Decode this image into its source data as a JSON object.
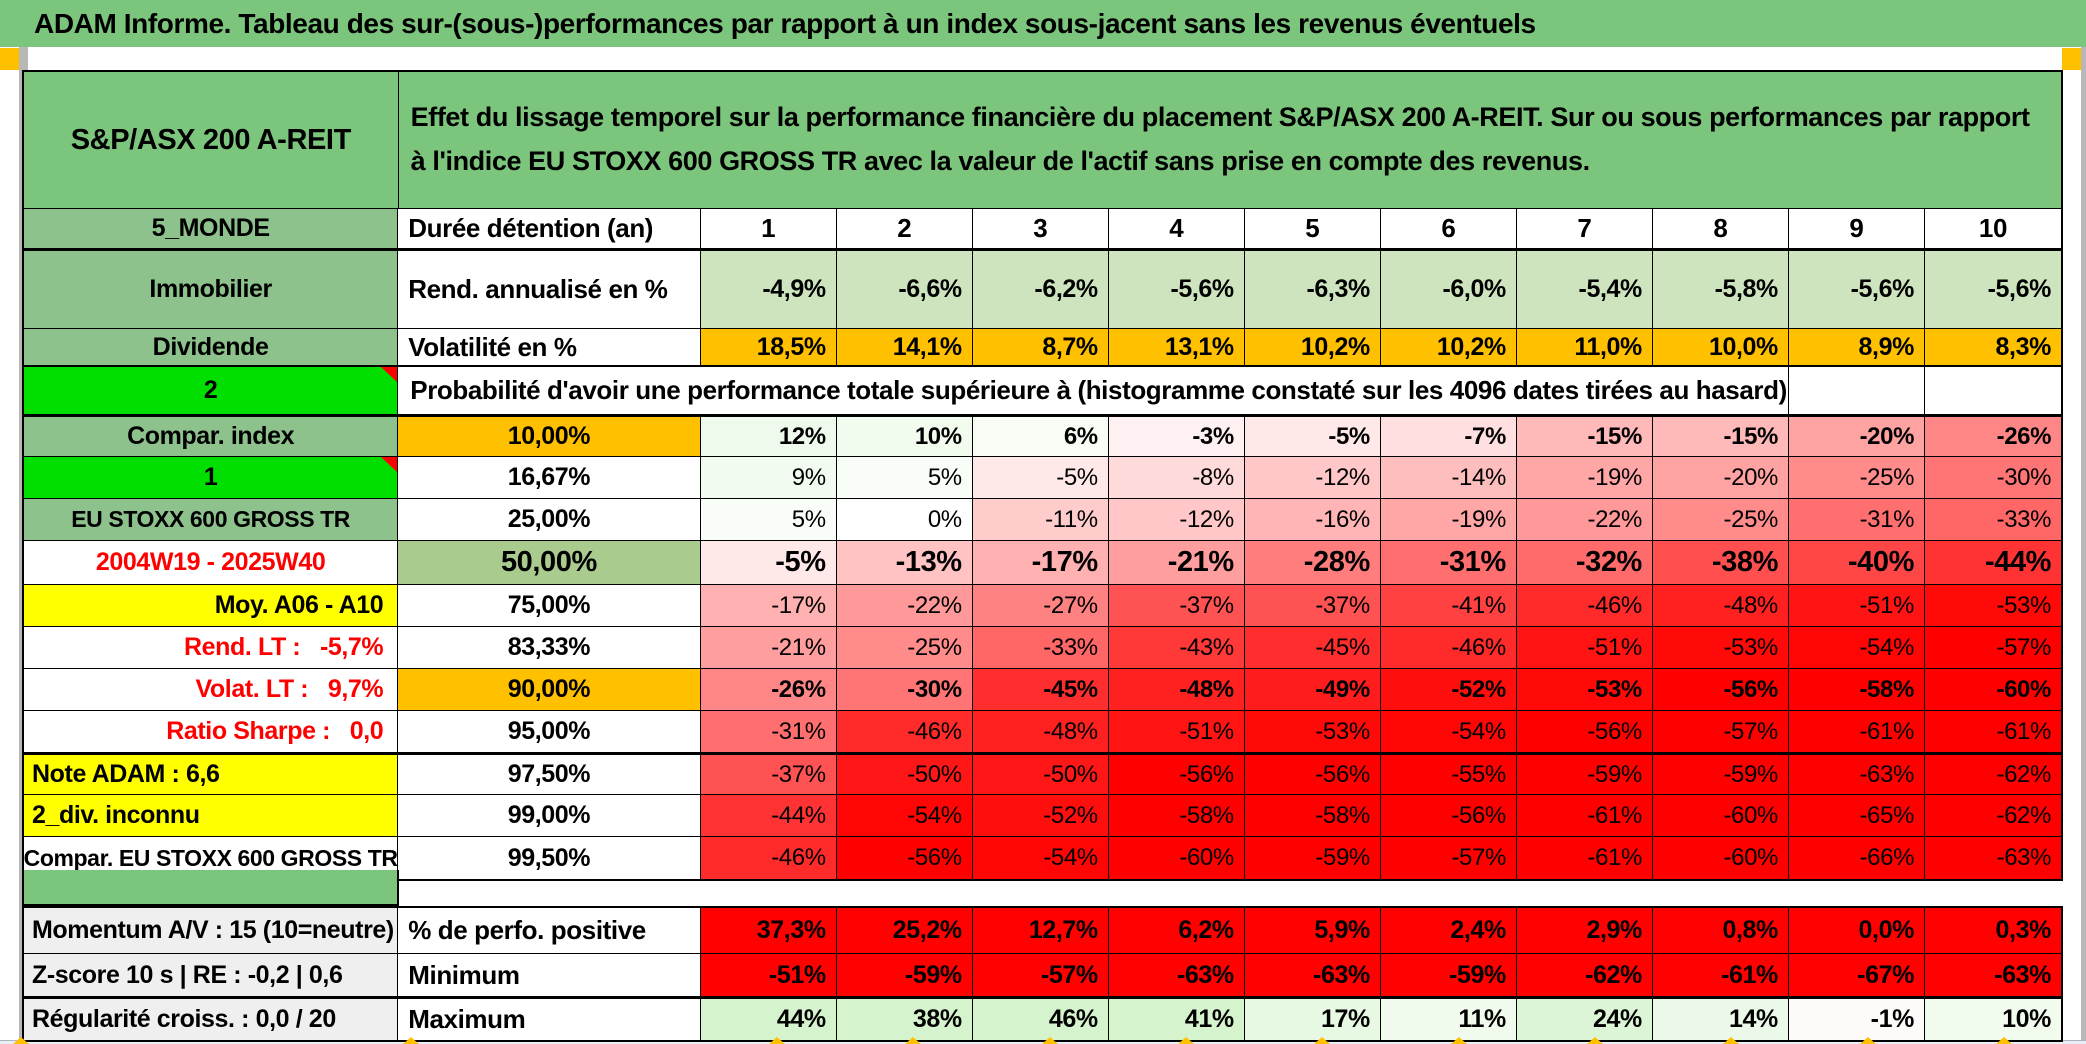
{
  "title": "ADAM Informe. Tableau des sur-(sous-)performances par rapport à un index sous-jacent sans les revenus éventuels",
  "table": {
    "asset_name": "S&P/ASX 200 A-REIT",
    "description": "Effet du lissage temporel sur la performance financière du placement S&P/ASX 200 A-REIT. Sur ou sous performances par rapport à l'indice EU STOXX 600 GROSS TR avec la valeur de l'actif sans prise en compte des revenus.",
    "meta_rows": [
      {
        "label": "5_MONDE",
        "metric": "Durée détention (an)",
        "values": [
          "1",
          "2",
          "3",
          "4",
          "5",
          "6",
          "7",
          "8",
          "9",
          "10"
        ]
      },
      {
        "label": "Immobilier",
        "metric": "Rend. annualisé en %",
        "values": [
          "-4,9%",
          "-6,6%",
          "-6,2%",
          "-5,6%",
          "-6,3%",
          "-6,0%",
          "-5,4%",
          "-5,8%",
          "-5,6%",
          "-5,6%"
        ]
      },
      {
        "label": "Dividende",
        "metric": "Volatilité en %",
        "values": [
          "18,5%",
          "14,1%",
          "8,7%",
          "13,1%",
          "10,2%",
          "10,2%",
          "11,0%",
          "10,0%",
          "8,9%",
          "8,3%"
        ]
      }
    ],
    "probability_header": {
      "label": "2",
      "text": "Probabilité d'avoir une performance totale supérieure à (histogramme constaté sur les 4096 dates tirées au hasard)"
    },
    "probability_rows": [
      {
        "label": "Compar. index",
        "label_style": "green",
        "prob": "10,00%",
        "prob_style": "orange",
        "bold": true,
        "thick": true,
        "values": [
          "12%",
          "10%",
          "6%",
          "-3%",
          "-5%",
          "-7%",
          "-15%",
          "-15%",
          "-20%",
          "-26%"
        ]
      },
      {
        "label": "1",
        "label_style": "bright",
        "flag": true,
        "prob": "16,67%",
        "values": [
          "9%",
          "5%",
          "-5%",
          "-8%",
          "-12%",
          "-14%",
          "-19%",
          "-20%",
          "-25%",
          "-30%"
        ]
      },
      {
        "label": "EU STOXX 600 GROSS TR",
        "label_style": "green-small",
        "prob": "25,00%",
        "values": [
          "5%",
          "0%",
          "-11%",
          "-12%",
          "-16%",
          "-19%",
          "-22%",
          "-25%",
          "-31%",
          "-33%"
        ]
      },
      {
        "label": "2004W19 - 2025W40",
        "label_style": "red-center",
        "prob": "50,00%",
        "prob_style": "green",
        "bold": true,
        "big": true,
        "values": [
          "-5%",
          "-13%",
          "-17%",
          "-21%",
          "-28%",
          "-31%",
          "-32%",
          "-38%",
          "-40%",
          "-44%"
        ]
      },
      {
        "label": "Moy. A06 - A10",
        "label_style": "yellow-right",
        "prob": "75,00%",
        "values": [
          "-17%",
          "-22%",
          "-27%",
          "-37%",
          "-37%",
          "-41%",
          "-46%",
          "-48%",
          "-51%",
          "-53%"
        ]
      },
      {
        "label": "Rend. LT :   -5,7%",
        "label_style": "red-right",
        "prob": "83,33%",
        "values": [
          "-21%",
          "-25%",
          "-33%",
          "-43%",
          "-45%",
          "-46%",
          "-51%",
          "-53%",
          "-54%",
          "-57%"
        ]
      },
      {
        "label": "Volat. LT :   9,7%",
        "label_style": "red-right",
        "prob": "90,00%",
        "prob_style": "orange",
        "bold": true,
        "values": [
          "-26%",
          "-30%",
          "-45%",
          "-48%",
          "-49%",
          "-52%",
          "-53%",
          "-56%",
          "-58%",
          "-60%"
        ]
      },
      {
        "label": "Ratio Sharpe :   0,0",
        "label_style": "red-right",
        "prob": "95,00%",
        "values": [
          "-31%",
          "-46%",
          "-48%",
          "-51%",
          "-53%",
          "-54%",
          "-56%",
          "-57%",
          "-61%",
          "-61%"
        ]
      },
      {
        "label": "Note ADAM : 6,6",
        "label_style": "yellow-left",
        "prob": "97,50%",
        "thick": true,
        "values": [
          "-37%",
          "-50%",
          "-50%",
          "-56%",
          "-56%",
          "-55%",
          "-59%",
          "-59%",
          "-63%",
          "-62%"
        ]
      },
      {
        "label": "2_div. inconnu",
        "label_style": "yellow-left",
        "prob": "99,00%",
        "values": [
          "-44%",
          "-54%",
          "-52%",
          "-58%",
          "-58%",
          "-56%",
          "-61%",
          "-60%",
          "-65%",
          "-62%"
        ]
      },
      {
        "label": "Compar. EU STOXX 600 GROSS TR",
        "label_style": "plain-center-small",
        "prob": "99,50%",
        "values": [
          "-46%",
          "-56%",
          "-54%",
          "-60%",
          "-59%",
          "-57%",
          "-61%",
          "-60%",
          "-66%",
          "-63%"
        ]
      }
    ],
    "summary_rows": [
      {
        "label": "Momentum A/V : 15 (10=neutre)",
        "metric": "% de perfo. positive",
        "value_style": "red",
        "values": [
          "37,3%",
          "25,2%",
          "12,7%",
          "6,2%",
          "5,9%",
          "2,4%",
          "2,9%",
          "0,8%",
          "0,0%",
          "0,3%"
        ]
      },
      {
        "label": "Z-score 10 s | RE : -0,2 | 0,6",
        "metric": "Minimum",
        "value_style": "red",
        "values": [
          "-51%",
          "-59%",
          "-57%",
          "-63%",
          "-63%",
          "-59%",
          "-62%",
          "-61%",
          "-67%",
          "-63%"
        ]
      },
      {
        "label": "Régularité croiss. : 0,0 / 20",
        "metric": "Maximum",
        "value_style": "scale",
        "thick": true,
        "values": [
          "44%",
          "38%",
          "46%",
          "41%",
          "17%",
          "11%",
          "24%",
          "14%",
          "-1%",
          "10%"
        ]
      }
    ],
    "colors": {
      "title_green": "#7CC57C",
      "label_green": "#8DC28D",
      "bright_green": "#00DF00",
      "orange": "#FFC000",
      "yellow": "#FFFF00",
      "red_fill": "#FF0101",
      "red_text": "#FF0000",
      "rend_row_green": "#CDE4BE",
      "prob50_green": "#A9CC8E",
      "summary_label_gray": "#EFEFEF"
    }
  }
}
